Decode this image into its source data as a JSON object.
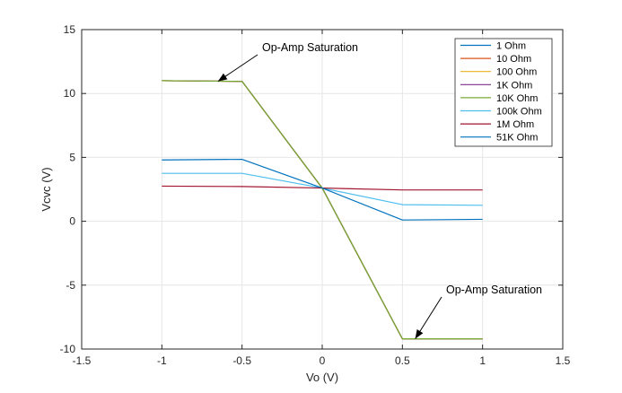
{
  "chart_data": {
    "type": "line",
    "xlabel": "Vo (V)",
    "ylabel": "Vcvc (V)",
    "xlim": [
      -1.5,
      1.5
    ],
    "ylim": [
      -10,
      15
    ],
    "xticks": [
      -1.5,
      -1,
      -0.5,
      0,
      0.5,
      1,
      1.5
    ],
    "yticks": [
      -10,
      -5,
      0,
      5,
      10,
      15
    ],
    "xtick_labels": [
      "-1.5",
      "-1",
      "-0.5",
      "0",
      "0.5",
      "1",
      "1.5"
    ],
    "ytick_labels": [
      "-10",
      "-5",
      "0",
      "5",
      "10",
      "15"
    ],
    "grid": true,
    "legend_position": "top-right",
    "series": [
      {
        "name": "1 Ohm",
        "color": "#0072BD",
        "x": [
          -1,
          -0.5,
          0,
          0.5,
          1
        ],
        "y": [
          11,
          10.95,
          2.6,
          -9.2,
          -9.2
        ]
      },
      {
        "name": "10 Ohm",
        "color": "#D95319",
        "x": [
          -1,
          -0.5,
          0,
          0.5,
          1
        ],
        "y": [
          11,
          10.95,
          2.6,
          -9.2,
          -9.2
        ]
      },
      {
        "name": "100 Ohm",
        "color": "#EDB120",
        "x": [
          -1,
          -0.5,
          0,
          0.5,
          1
        ],
        "y": [
          11,
          10.95,
          2.6,
          -9.2,
          -9.2
        ]
      },
      {
        "name": "1K Ohm",
        "color": "#7E2F8E",
        "x": [
          -1,
          -0.5,
          0,
          0.5,
          1
        ],
        "y": [
          11,
          10.95,
          2.6,
          -9.2,
          -9.2
        ]
      },
      {
        "name": "10K Ohm",
        "color": "#77AC30",
        "x": [
          -1,
          -0.5,
          0,
          0.5,
          1
        ],
        "y": [
          11,
          10.95,
          2.6,
          -9.2,
          -9.2
        ]
      },
      {
        "name": "100k Ohm",
        "color": "#4DBEEE",
        "x": [
          -1,
          -0.5,
          0,
          0.5,
          1
        ],
        "y": [
          3.75,
          3.75,
          2.6,
          1.3,
          1.25
        ]
      },
      {
        "name": "1M Ohm",
        "color": "#A2142F",
        "x": [
          -1,
          -0.5,
          0,
          0.5,
          1
        ],
        "y": [
          2.75,
          2.72,
          2.6,
          2.45,
          2.45
        ]
      },
      {
        "name": "51K Ohm",
        "color": "#0072BD",
        "x": [
          -1,
          -0.5,
          0,
          0.5,
          1
        ],
        "y": [
          4.8,
          4.85,
          2.6,
          0.1,
          0.15
        ]
      }
    ],
    "annotations": [
      {
        "text": "Op-Amp Saturation",
        "arrow_to": [
          -0.65,
          10.95
        ]
      },
      {
        "text": "Op-Amp Saturation",
        "arrow_to": [
          0.58,
          -9.2
        ]
      }
    ]
  }
}
